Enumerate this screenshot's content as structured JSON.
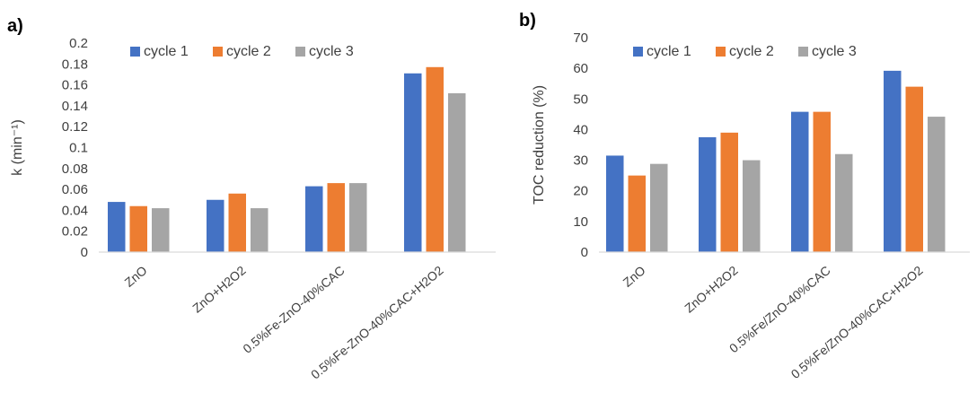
{
  "panels": {
    "a": {
      "label": "a)"
    },
    "b": {
      "label": "b)"
    }
  },
  "colors": {
    "cycle 1": "#4472C4",
    "cycle 2": "#ED7D31",
    "cycle 3": "#A5A5A5",
    "axis": "#D9D9D9",
    "text": "#404040"
  },
  "chart_data": [
    {
      "type": "bar",
      "panel": "a)",
      "title": "",
      "xlabel": "",
      "ylabel": "k (min⁻¹)",
      "ylim": [
        0,
        0.2
      ],
      "yticks": [
        "0",
        "0.02",
        "0.04",
        "0.06",
        "0.08",
        "0.1",
        "0.12",
        "0.14",
        "0.16",
        "0.18",
        "0.2"
      ],
      "categories": [
        "ZnO",
        "ZnO+H2O2",
        "0.5%Fe-ZnO-40%CAC",
        "0.5%Fe-ZnO-40%CAC+H2O2"
      ],
      "series": [
        {
          "name": "cycle 1",
          "values": [
            0.048,
            0.05,
            0.063,
            0.171
          ]
        },
        {
          "name": "cycle 2",
          "values": [
            0.044,
            0.056,
            0.066,
            0.177
          ]
        },
        {
          "name": "cycle 3",
          "values": [
            0.042,
            0.042,
            0.066,
            0.152
          ]
        }
      ],
      "legend": "top-left",
      "grid": false
    },
    {
      "type": "bar",
      "panel": "b)",
      "title": "",
      "xlabel": "",
      "ylabel": "TOC reduction (%)",
      "ylim": [
        0,
        70
      ],
      "yticks": [
        "0",
        "10",
        "20",
        "30",
        "40",
        "50",
        "60",
        "70"
      ],
      "categories": [
        "ZnO",
        "ZnO+H2O2",
        "0.5%Fe/ZnO-40%CAC",
        "0.5%Fe/ZnO-40%CAC+H2O2"
      ],
      "series": [
        {
          "name": "cycle 1",
          "values": [
            31.5,
            37.5,
            45.8,
            59.2
          ]
        },
        {
          "name": "cycle 2",
          "values": [
            25.0,
            39.0,
            45.8,
            54.0
          ]
        },
        {
          "name": "cycle 3",
          "values": [
            28.8,
            30.0,
            32.0,
            44.2
          ]
        }
      ],
      "legend": "top-left",
      "grid": false
    }
  ]
}
